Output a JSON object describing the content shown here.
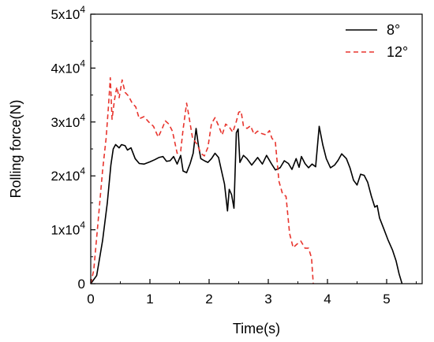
{
  "chart_data": {
    "type": "line",
    "title": "",
    "xlabel": "Time(s)",
    "ylabel": "Rolling force(N)",
    "xlim": [
      0,
      5.6
    ],
    "ylim": [
      0,
      50000
    ],
    "x_ticks": [
      0,
      1,
      2,
      3,
      4,
      5
    ],
    "x_tick_labels": [
      "0",
      "1",
      "2",
      "3",
      "4",
      "5"
    ],
    "y_ticks": [
      0,
      10000,
      20000,
      30000,
      40000,
      50000
    ],
    "y_tick_labels": [
      {
        "base": "0",
        "exp": ""
      },
      {
        "base": "1x10",
        "exp": "4"
      },
      {
        "base": "2x10",
        "exp": "4"
      },
      {
        "base": "3x10",
        "exp": "4"
      },
      {
        "base": "4x10",
        "exp": "4"
      },
      {
        "base": "5x10",
        "exp": "4"
      }
    ],
    "grid": false,
    "legend_position": "top-right",
    "series": [
      {
        "name": "8°",
        "color": "#000000",
        "dash": "solid",
        "points": [
          [
            0,
            0
          ],
          [
            0.1,
            1500
          ],
          [
            0.2,
            8000
          ],
          [
            0.28,
            15000
          ],
          [
            0.34,
            22000
          ],
          [
            0.38,
            25000
          ],
          [
            0.42,
            25800
          ],
          [
            0.48,
            25200
          ],
          [
            0.52,
            25800
          ],
          [
            0.58,
            25600
          ],
          [
            0.62,
            24800
          ],
          [
            0.68,
            25200
          ],
          [
            0.75,
            23200
          ],
          [
            0.82,
            22300
          ],
          [
            0.9,
            22200
          ],
          [
            1.0,
            22600
          ],
          [
            1.08,
            23000
          ],
          [
            1.15,
            23400
          ],
          [
            1.22,
            23600
          ],
          [
            1.28,
            22700
          ],
          [
            1.34,
            22800
          ],
          [
            1.4,
            23600
          ],
          [
            1.46,
            22200
          ],
          [
            1.52,
            23800
          ],
          [
            1.56,
            20900
          ],
          [
            1.62,
            20600
          ],
          [
            1.68,
            22300
          ],
          [
            1.73,
            24200
          ],
          [
            1.78,
            28800
          ],
          [
            1.82,
            25600
          ],
          [
            1.86,
            23200
          ],
          [
            1.92,
            22800
          ],
          [
            1.98,
            22500
          ],
          [
            2.04,
            23200
          ],
          [
            2.1,
            24200
          ],
          [
            2.16,
            23400
          ],
          [
            2.2,
            21400
          ],
          [
            2.26,
            18500
          ],
          [
            2.31,
            13500
          ],
          [
            2.34,
            17500
          ],
          [
            2.38,
            16500
          ],
          [
            2.42,
            14000
          ],
          [
            2.46,
            28000
          ],
          [
            2.49,
            28700
          ],
          [
            2.52,
            22500
          ],
          [
            2.58,
            23800
          ],
          [
            2.64,
            23200
          ],
          [
            2.72,
            22000
          ],
          [
            2.82,
            23400
          ],
          [
            2.9,
            22200
          ],
          [
            2.97,
            23800
          ],
          [
            3.05,
            22300
          ],
          [
            3.12,
            21100
          ],
          [
            3.2,
            21500
          ],
          [
            3.27,
            22800
          ],
          [
            3.34,
            22300
          ],
          [
            3.4,
            21200
          ],
          [
            3.47,
            23200
          ],
          [
            3.52,
            21600
          ],
          [
            3.56,
            23600
          ],
          [
            3.62,
            22300
          ],
          [
            3.68,
            21500
          ],
          [
            3.74,
            22200
          ],
          [
            3.8,
            21700
          ],
          [
            3.86,
            29200
          ],
          [
            3.92,
            25800
          ],
          [
            3.98,
            23200
          ],
          [
            4.05,
            21500
          ],
          [
            4.12,
            22000
          ],
          [
            4.18,
            22900
          ],
          [
            4.24,
            24100
          ],
          [
            4.32,
            23200
          ],
          [
            4.38,
            21500
          ],
          [
            4.44,
            19200
          ],
          [
            4.5,
            18300
          ],
          [
            4.56,
            20300
          ],
          [
            4.62,
            20100
          ],
          [
            4.68,
            18800
          ],
          [
            4.74,
            16300
          ],
          [
            4.8,
            14200
          ],
          [
            4.84,
            14500
          ],
          [
            4.88,
            12200
          ],
          [
            4.95,
            10200
          ],
          [
            5.02,
            8200
          ],
          [
            5.1,
            6200
          ],
          [
            5.16,
            4200
          ],
          [
            5.21,
            1800
          ],
          [
            5.26,
            0
          ]
        ]
      },
      {
        "name": "12°",
        "color": "#e8352e",
        "dash": "dashed",
        "points": [
          [
            0,
            0
          ],
          [
            0.05,
            2500
          ],
          [
            0.12,
            11000
          ],
          [
            0.2,
            21000
          ],
          [
            0.26,
            27000
          ],
          [
            0.3,
            33000
          ],
          [
            0.33,
            38200
          ],
          [
            0.36,
            30500
          ],
          [
            0.4,
            34000
          ],
          [
            0.44,
            36500
          ],
          [
            0.48,
            34500
          ],
          [
            0.53,
            37800
          ],
          [
            0.58,
            35500
          ],
          [
            0.64,
            34800
          ],
          [
            0.7,
            33500
          ],
          [
            0.76,
            32800
          ],
          [
            0.82,
            30600
          ],
          [
            0.9,
            31000
          ],
          [
            0.98,
            30000
          ],
          [
            1.06,
            29200
          ],
          [
            1.14,
            27200
          ],
          [
            1.2,
            28600
          ],
          [
            1.26,
            30200
          ],
          [
            1.32,
            29600
          ],
          [
            1.38,
            28300
          ],
          [
            1.46,
            24200
          ],
          [
            1.52,
            24600
          ],
          [
            1.56,
            28600
          ],
          [
            1.62,
            33500
          ],
          [
            1.66,
            31000
          ],
          [
            1.72,
            27000
          ],
          [
            1.8,
            25800
          ],
          [
            1.86,
            24200
          ],
          [
            1.92,
            23700
          ],
          [
            1.98,
            25300
          ],
          [
            2.04,
            29700
          ],
          [
            2.1,
            30800
          ],
          [
            2.16,
            29300
          ],
          [
            2.22,
            27600
          ],
          [
            2.28,
            29600
          ],
          [
            2.34,
            29100
          ],
          [
            2.4,
            28100
          ],
          [
            2.46,
            30100
          ],
          [
            2.5,
            31800
          ],
          [
            2.54,
            32000
          ],
          [
            2.58,
            29300
          ],
          [
            2.64,
            28800
          ],
          [
            2.7,
            29300
          ],
          [
            2.76,
            27700
          ],
          [
            2.82,
            28300
          ],
          [
            2.88,
            27900
          ],
          [
            2.96,
            27600
          ],
          [
            3.02,
            28400
          ],
          [
            3.06,
            27000
          ],
          [
            3.12,
            26200
          ],
          [
            3.18,
            19000
          ],
          [
            3.24,
            16700
          ],
          [
            3.3,
            16200
          ],
          [
            3.36,
            9300
          ],
          [
            3.42,
            6700
          ],
          [
            3.48,
            7300
          ],
          [
            3.55,
            7900
          ],
          [
            3.62,
            6600
          ],
          [
            3.68,
            6600
          ],
          [
            3.73,
            4800
          ],
          [
            3.76,
            0
          ]
        ]
      }
    ]
  }
}
